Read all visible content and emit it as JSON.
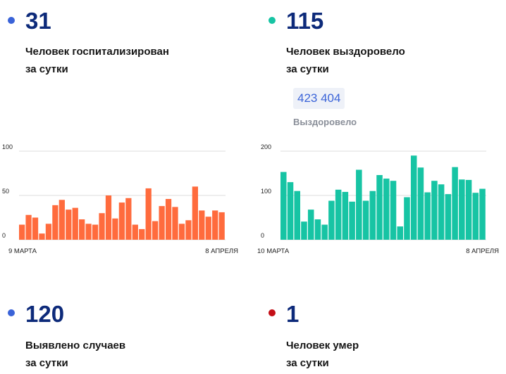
{
  "colors": {
    "navy": "#0d2a7a",
    "blue_dot": "#3a63d8",
    "teal_dot": "#17c4a4",
    "red_dot": "#c40f17",
    "orange_bar": "#ff6b3d",
    "teal_bar": "#17c4a4"
  },
  "hospitalized": {
    "value": "31",
    "caption_line1": "Человек госпитализирован",
    "caption_line2": "за сутки"
  },
  "recovered": {
    "value": "115",
    "caption_line1": "Человек выздоровело",
    "caption_line2": "за сутки",
    "total": "423 404",
    "total_label": "Выздоровело"
  },
  "cases": {
    "value": "120",
    "caption_line1": "Выявлено случаев",
    "caption_line2": "за сутки"
  },
  "deaths": {
    "value": "1",
    "caption_line1": "Человек умер",
    "caption_line2": "за сутки"
  },
  "chart_data": [
    {
      "type": "bar",
      "title": "",
      "series_name": "Госпитализировано за сутки",
      "color": "#ff6b3d",
      "ylim": [
        0,
        100
      ],
      "yticks": [
        "100",
        "50",
        "0"
      ],
      "ytick_values": [
        100,
        50,
        0
      ],
      "x_start_label": "9 МАРТА",
      "x_end_label": "8 АПРЕЛЯ",
      "values": [
        17,
        28,
        25,
        7,
        18,
        39,
        45,
        34,
        36,
        23,
        18,
        17,
        30,
        50,
        24,
        42,
        47,
        17,
        12,
        58,
        21,
        38,
        46,
        37,
        18,
        22,
        60,
        33,
        26,
        33,
        31
      ]
    },
    {
      "type": "bar",
      "title": "",
      "series_name": "Выздоровело за сутки",
      "color": "#17c4a4",
      "ylim": [
        0,
        200
      ],
      "yticks": [
        "200",
        "100",
        "0"
      ],
      "ytick_values": [
        200,
        100,
        0
      ],
      "x_start_label": "10 МАРТА",
      "x_end_label": "8 АПРЕЛЯ",
      "values": [
        153,
        130,
        110,
        41,
        68,
        46,
        34,
        88,
        113,
        108,
        86,
        158,
        88,
        110,
        146,
        138,
        133,
        30,
        96,
        190,
        163,
        107,
        133,
        125,
        103,
        164,
        136,
        135,
        106,
        115
      ]
    }
  ]
}
